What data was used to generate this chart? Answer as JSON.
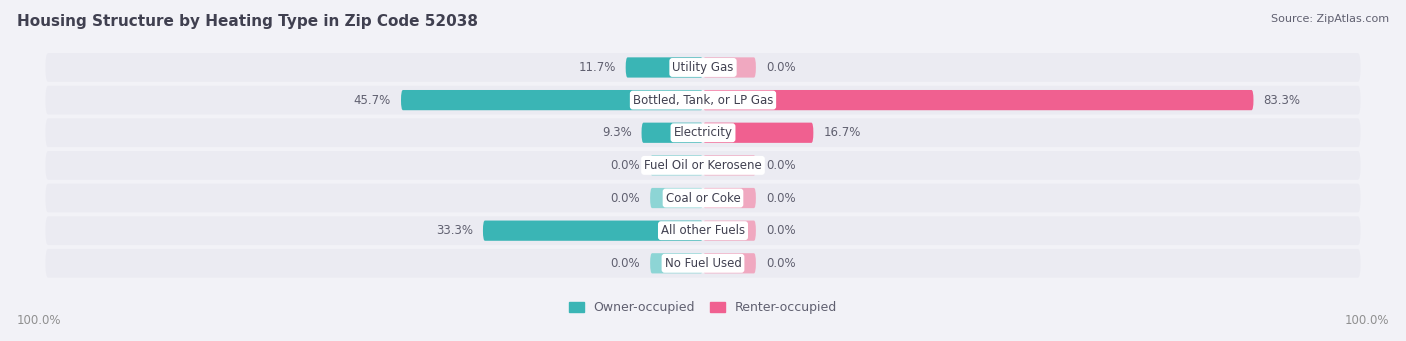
{
  "title": "Housing Structure by Heating Type in Zip Code 52038",
  "source": "Source: ZipAtlas.com",
  "categories": [
    "Utility Gas",
    "Bottled, Tank, or LP Gas",
    "Electricity",
    "Fuel Oil or Kerosene",
    "Coal or Coke",
    "All other Fuels",
    "No Fuel Used"
  ],
  "owner_values": [
    11.7,
    45.7,
    9.3,
    0.0,
    0.0,
    33.3,
    0.0
  ],
  "renter_values": [
    0.0,
    83.3,
    16.7,
    0.0,
    0.0,
    0.0,
    0.0
  ],
  "owner_color": "#3ab5b5",
  "owner_color_light": "#8dd5d5",
  "renter_color": "#f06090",
  "renter_color_light": "#f0a8c0",
  "bg_color": "#f2f2f7",
  "row_bg_color": "#ebebf2",
  "row_bg_shadow": "#d8d8e0",
  "title_color": "#404050",
  "label_color": "#606070",
  "text_color": "#404050",
  "axis_label_color": "#909090",
  "x_left_label": "100.0%",
  "x_right_label": "100.0%",
  "legend_owner": "Owner-occupied",
  "legend_renter": "Renter-occupied",
  "max_val": 100,
  "zero_stub": 8
}
